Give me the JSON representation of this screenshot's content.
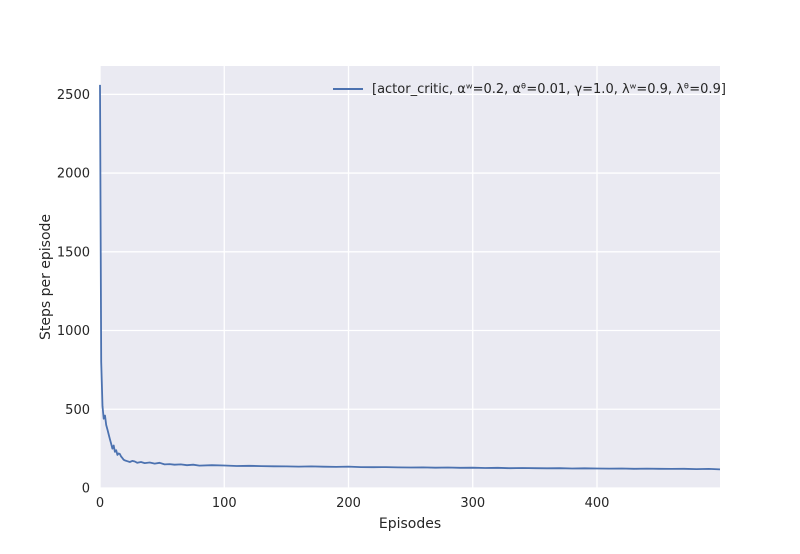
{
  "chart_data": {
    "type": "line",
    "title": "",
    "xlabel": "Episodes",
    "ylabel": "Steps per episode",
    "xlim": [
      0,
      499
    ],
    "ylim": [
      0,
      2680
    ],
    "xticks": [
      0,
      100,
      200,
      300,
      400
    ],
    "yticks": [
      0,
      500,
      1000,
      1500,
      2000,
      2500
    ],
    "grid": true,
    "legend_position": "top-right",
    "series": [
      {
        "name": "[actor_critic, αʷ=0.2, αᶿ=0.01, γ=1.0, λʷ=0.9, λᶿ=0.9]",
        "color": "#4c72b0",
        "x": [
          0,
          1,
          2,
          3,
          4,
          5,
          6,
          7,
          8,
          9,
          10,
          11,
          12,
          13,
          14,
          15,
          16,
          17,
          18,
          19,
          20,
          22,
          24,
          26,
          28,
          30,
          33,
          36,
          40,
          44,
          48,
          52,
          56,
          60,
          65,
          70,
          75,
          80,
          90,
          100,
          110,
          120,
          130,
          140,
          150,
          160,
          170,
          180,
          190,
          200,
          210,
          220,
          230,
          240,
          250,
          260,
          270,
          280,
          290,
          300,
          310,
          320,
          330,
          340,
          350,
          360,
          370,
          380,
          390,
          400,
          410,
          420,
          430,
          440,
          450,
          460,
          470,
          480,
          490,
          499
        ],
        "y": [
          2560,
          800,
          520,
          440,
          460,
          400,
          370,
          340,
          310,
          280,
          250,
          270,
          230,
          240,
          210,
          220,
          215,
          200,
          190,
          180,
          175,
          170,
          165,
          172,
          168,
          160,
          165,
          158,
          162,
          155,
          160,
          150,
          152,
          148,
          150,
          145,
          148,
          142,
          145,
          143,
          140,
          141,
          139,
          138,
          137,
          136,
          137,
          135,
          134,
          136,
          133,
          132,
          133,
          131,
          130,
          131,
          129,
          130,
          128,
          129,
          127,
          128,
          126,
          127,
          126,
          125,
          126,
          124,
          125,
          124,
          123,
          124,
          122,
          123,
          122,
          121,
          122,
          120,
          121,
          118
        ]
      }
    ]
  }
}
